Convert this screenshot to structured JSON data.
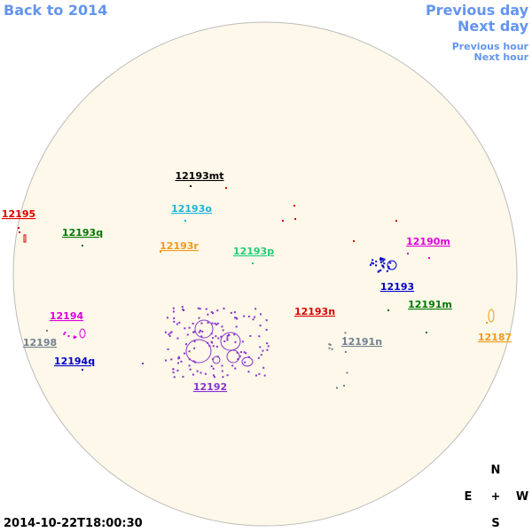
{
  "nav": {
    "back": "Back to 2014",
    "previous_day": "Previous day",
    "next_day": "Next day",
    "previous_hour": "Previous hour",
    "next_hour": "Next hour"
  },
  "regions": [
    {
      "label": "12193mt",
      "color": "#000000"
    },
    {
      "label": "12193o",
      "color": "#1ab4dc"
    },
    {
      "label": "12195",
      "color": "#dd0000"
    },
    {
      "label": "12193q",
      "color": "#007700"
    },
    {
      "label": "12193r",
      "color": "#f09a1a"
    },
    {
      "label": "12193p",
      "color": "#22cc77"
    },
    {
      "label": "12190m",
      "color": "#dd00dd"
    },
    {
      "label": "12193",
      "color": "#0000cc"
    },
    {
      "label": "12191m",
      "color": "#007700"
    },
    {
      "label": "12193n",
      "color": "#dd0000"
    },
    {
      "label": "12194",
      "color": "#dd00dd"
    },
    {
      "label": "12198",
      "color": "#708090"
    },
    {
      "label": "12191n",
      "color": "#708090"
    },
    {
      "label": "12187",
      "color": "#f09a1a"
    },
    {
      "label": "12194q",
      "color": "#0000cc"
    },
    {
      "label": "12192",
      "color": "#8833cc"
    }
  ],
  "compass": {
    "north": "N",
    "east": "E",
    "center": "+",
    "west": "W",
    "south": "S"
  },
  "timestamp": "2014-10-22T18:00:30"
}
